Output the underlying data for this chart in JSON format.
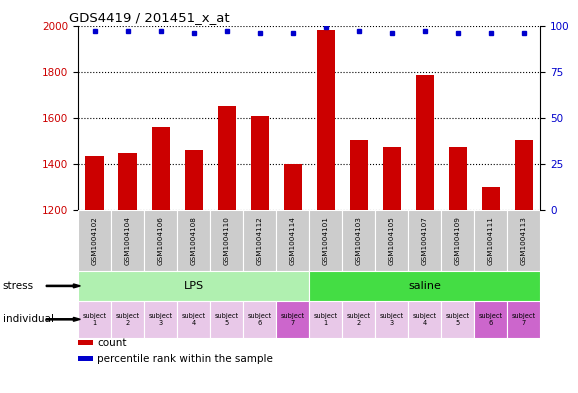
{
  "title": "GDS4419 / 201451_x_at",
  "samples": [
    "GSM1004102",
    "GSM1004104",
    "GSM1004106",
    "GSM1004108",
    "GSM1004110",
    "GSM1004112",
    "GSM1004114",
    "GSM1004101",
    "GSM1004103",
    "GSM1004105",
    "GSM1004107",
    "GSM1004109",
    "GSM1004111",
    "GSM1004113"
  ],
  "counts": [
    1435,
    1448,
    1560,
    1462,
    1650,
    1610,
    1400,
    1980,
    1505,
    1475,
    1785,
    1472,
    1300,
    1505
  ],
  "percentiles": [
    97,
    97,
    97,
    96,
    97,
    96,
    96,
    99,
    97,
    96,
    97,
    96,
    96,
    96
  ],
  "bar_color": "#cc0000",
  "dot_color": "#0000cc",
  "ylim_left": [
    1200,
    2000
  ],
  "ylim_right": [
    0,
    100
  ],
  "yticks_left": [
    1200,
    1400,
    1600,
    1800,
    2000
  ],
  "yticks_right": [
    0,
    25,
    50,
    75,
    100
  ],
  "stress_groups": [
    {
      "label": "LPS",
      "start": 0,
      "end": 7,
      "color": "#b0f0b0"
    },
    {
      "label": "saline",
      "start": 7,
      "end": 14,
      "color": "#44dd44"
    }
  ],
  "indiv_colors": [
    "#e8c8e8",
    "#e8c8e8",
    "#e8c8e8",
    "#e8c8e8",
    "#e8c8e8",
    "#e8c8e8",
    "#cc66cc",
    "#e8c8e8",
    "#e8c8e8",
    "#e8c8e8",
    "#e8c8e8",
    "#e8c8e8",
    "#cc66cc",
    "#cc66cc"
  ],
  "individual_labels": [
    "subject\n1",
    "subject\n2",
    "subject\n3",
    "subject\n4",
    "subject\n5",
    "subject\n6",
    "subject\n7",
    "subject\n1",
    "subject\n2",
    "subject\n3",
    "subject\n4",
    "subject\n5",
    "subject\n6",
    "subject\n7"
  ],
  "legend_items": [
    {
      "color": "#cc0000",
      "label": "count"
    },
    {
      "color": "#0000cc",
      "label": "percentile rank within the sample"
    }
  ],
  "bg_white": "#ffffff",
  "sample_bg": "#cccccc"
}
